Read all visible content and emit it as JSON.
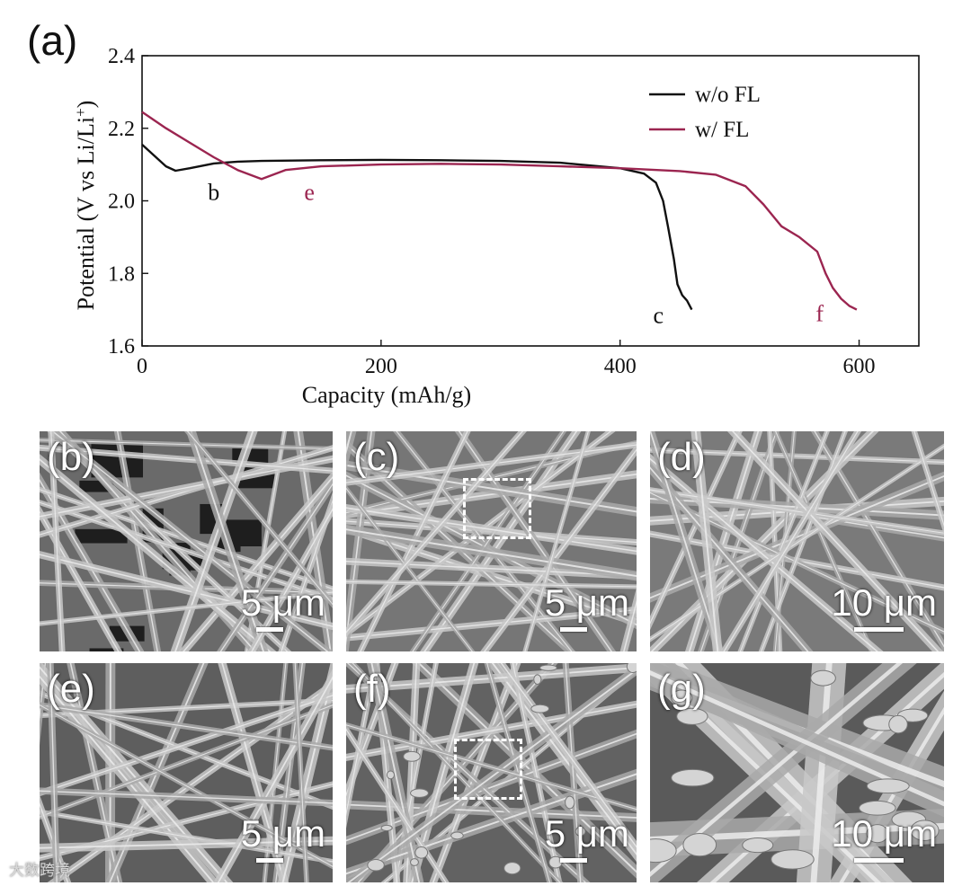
{
  "chart_data": {
    "type": "line",
    "panel_label": "(a)",
    "title": "",
    "xlabel": "Capacity (mAh/g)",
    "ylabel": "Potential (V vs Li/Li",
    "ylabel_sup": "+",
    "ylabel_close": ")",
    "xlim": [
      0,
      650
    ],
    "ylim": [
      1.6,
      2.4
    ],
    "xticks": [
      0,
      200,
      400,
      600
    ],
    "yticks": [
      1.6,
      1.8,
      2.0,
      2.2,
      2.4
    ],
    "grid": false,
    "legend": "top-right",
    "series": [
      {
        "name": "w/o FL",
        "color": "#111111",
        "x": [
          0,
          10,
          20,
          28,
          40,
          60,
          80,
          100,
          150,
          200,
          250,
          300,
          350,
          400,
          420,
          430,
          436,
          440,
          445,
          448,
          452,
          456,
          460
        ],
        "y": [
          2.155,
          2.125,
          2.095,
          2.083,
          2.09,
          2.103,
          2.108,
          2.11,
          2.112,
          2.113,
          2.112,
          2.11,
          2.105,
          2.09,
          2.075,
          2.05,
          2.0,
          1.93,
          1.84,
          1.77,
          1.74,
          1.725,
          1.7
        ]
      },
      {
        "name": "w/ FL",
        "color": "#9b2550",
        "x": [
          0,
          20,
          40,
          60,
          80,
          100,
          120,
          150,
          200,
          250,
          300,
          350,
          400,
          450,
          480,
          505,
          520,
          535,
          550,
          565,
          572,
          578,
          585,
          592,
          598
        ],
        "y": [
          2.245,
          2.2,
          2.16,
          2.12,
          2.085,
          2.06,
          2.085,
          2.095,
          2.1,
          2.102,
          2.1,
          2.095,
          2.09,
          2.082,
          2.072,
          2.04,
          1.99,
          1.93,
          1.9,
          1.86,
          1.8,
          1.76,
          1.73,
          1.71,
          1.7
        ]
      }
    ],
    "annotations": [
      {
        "text": "b",
        "x": 60,
        "y": 2.025,
        "color": "#111111"
      },
      {
        "text": "e",
        "x": 140,
        "y": 2.025,
        "color": "#9b2550"
      },
      {
        "text": "c",
        "x": 432,
        "y": 1.685,
        "color": "#111111"
      },
      {
        "text": "f",
        "x": 567,
        "y": 1.69,
        "color": "#9b2550"
      }
    ]
  },
  "images": [
    {
      "label": "(b)",
      "scale": "5 μm",
      "tone": "#6a6a6a"
    },
    {
      "label": "(c)",
      "scale": "5 μm",
      "tone": "#767676"
    },
    {
      "label": "(d)",
      "scale": "10 μm",
      "tone": "#7a7a7a"
    },
    {
      "label": "(e)",
      "scale": "5 μm",
      "tone": "#5e5e5e"
    },
    {
      "label": "(f)",
      "scale": "5 μm",
      "tone": "#626262"
    },
    {
      "label": "(g)",
      "scale": "10 μm",
      "tone": "#5a5a5a"
    }
  ],
  "watermark": "大数跨境"
}
